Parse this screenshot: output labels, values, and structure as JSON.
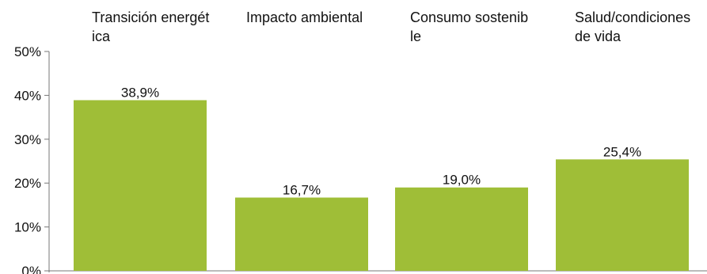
{
  "chart_data": {
    "type": "bar",
    "categories": [
      "Transición energética",
      "Impacto ambiental",
      "Consumo sostenible",
      "Salud/condiciones de vida"
    ],
    "values": [
      38.9,
      16.7,
      19.0,
      25.4
    ],
    "data_labels": [
      "38,9%",
      "16,7%",
      "19,0%",
      "25,4%"
    ],
    "y_ticks": [
      {
        "value": 0,
        "label": "0%"
      },
      {
        "value": 10,
        "label": "10%"
      },
      {
        "value": 20,
        "label": "20%"
      },
      {
        "value": 30,
        "label": "30%"
      },
      {
        "value": 40,
        "label": "40%"
      },
      {
        "value": 50,
        "label": "50%"
      }
    ],
    "ylim": [
      0,
      50
    ],
    "title": "",
    "xlabel": "",
    "ylabel": "",
    "grid": false,
    "legend": "none",
    "bar_color": "#9fbe37",
    "label_position": "top"
  }
}
